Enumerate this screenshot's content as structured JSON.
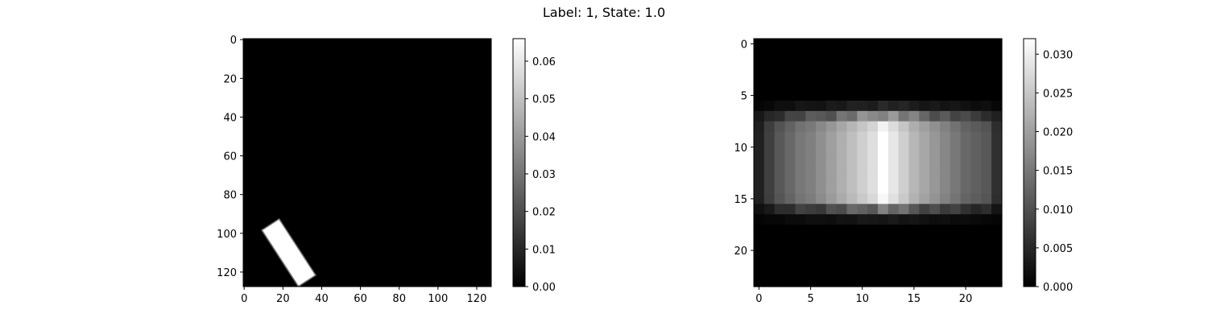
{
  "figure": {
    "suptitle": "Label: 1, State: 1.0"
  },
  "chart_data": [
    {
      "type": "heatmap",
      "colormap": "gray",
      "grid": false,
      "shape": [
        128,
        128
      ],
      "xlim": [
        -0.5,
        127.5
      ],
      "ylim": [
        127.5,
        -0.5
      ],
      "x_ticks": [
        "0",
        "20",
        "40",
        "60",
        "80",
        "100",
        "120"
      ],
      "y_ticks": [
        "0",
        "20",
        "40",
        "60",
        "80",
        "100",
        "120"
      ],
      "colorbar": {
        "range": [
          0.0,
          0.066
        ],
        "ticks": [
          "0.00",
          "0.01",
          "0.02",
          "0.03",
          "0.04",
          "0.05",
          "0.06"
        ]
      },
      "feature": {
        "shape": "rotated rectangle",
        "center_col": 23,
        "center_row": 110,
        "length": 34,
        "width": 10,
        "angle_deg": 57,
        "value": 0.066,
        "edge_value": 0.03
      }
    },
    {
      "type": "heatmap",
      "colormap": "gray",
      "grid": false,
      "shape": [
        24,
        24
      ],
      "xlim": [
        -0.5,
        23.5
      ],
      "ylim": [
        23.5,
        -0.5
      ],
      "x_ticks": [
        "0",
        "5",
        "10",
        "15",
        "20"
      ],
      "y_ticks": [
        "0",
        "5",
        "10",
        "15",
        "20"
      ],
      "colorbar": {
        "range": [
          0.0,
          0.032
        ],
        "ticks": [
          "0.000",
          "0.005",
          "0.010",
          "0.015",
          "0.020",
          "0.025",
          "0.030"
        ]
      },
      "column_profile": [
        0.004,
        0.008,
        0.011,
        0.013,
        0.015,
        0.016,
        0.018,
        0.02,
        0.022,
        0.024,
        0.026,
        0.028,
        0.032,
        0.029,
        0.026,
        0.023,
        0.021,
        0.019,
        0.017,
        0.015,
        0.013,
        0.012,
        0.011,
        0.006
      ],
      "rows": [
        {
          "row": 6,
          "factor": 0.18
        },
        {
          "row": 7,
          "factor": 0.72
        },
        {
          "row": 8,
          "factor": 0.95
        },
        {
          "row": 9,
          "factor": 1.0
        },
        {
          "row": 10,
          "factor": 1.0
        },
        {
          "row": 11,
          "factor": 1.0
        },
        {
          "row": 12,
          "factor": 1.0
        },
        {
          "row": 13,
          "factor": 1.0
        },
        {
          "row": 14,
          "factor": 1.0
        },
        {
          "row": 15,
          "factor": 0.97
        },
        {
          "row": 16,
          "factor": 0.55
        },
        {
          "row": 17,
          "factor": 0.12
        }
      ]
    }
  ]
}
